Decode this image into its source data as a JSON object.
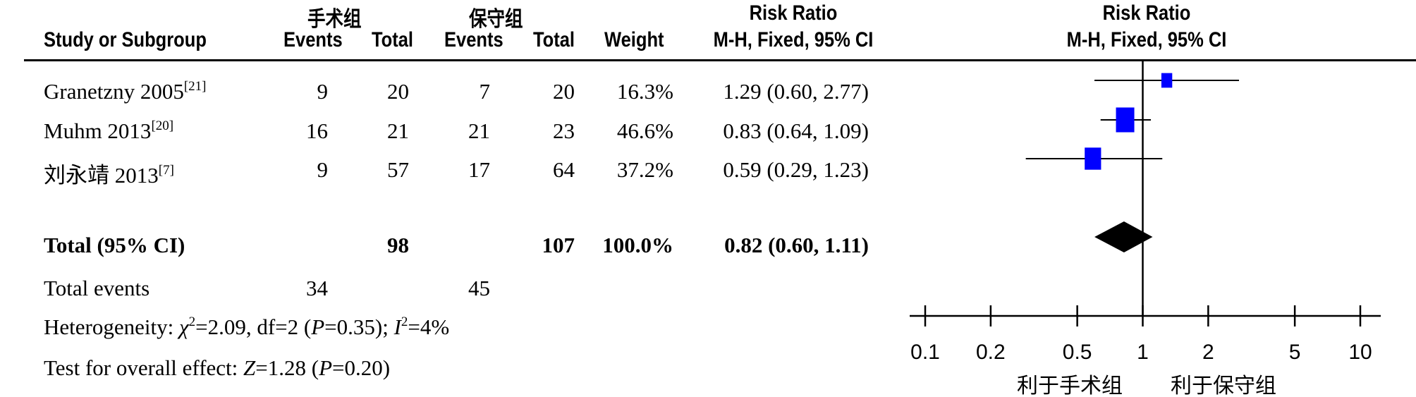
{
  "headers": {
    "group1": "手术组",
    "group2": "保守组",
    "study": "Study or Subgroup",
    "events": "Events",
    "total": "Total",
    "weight": "Weight",
    "rr_title": "Risk Ratio",
    "rr_method": "M-H, Fixed, 95% CI"
  },
  "studies": [
    {
      "name": "Granetzny 2005",
      "ref": "[21]",
      "e1": "9",
      "n1": "20",
      "e2": "7",
      "n2": "20",
      "weight": "16.3%",
      "ci_text": "1.29 (0.60, 2.77)"
    },
    {
      "name": "Muhm 2013",
      "ref": "[20]",
      "e1": "16",
      "n1": "21",
      "e2": "21",
      "n2": "23",
      "weight": "46.6%",
      "ci_text": "0.83 (0.64, 1.09)"
    },
    {
      "name": "刘永靖 2013",
      "ref": "[7]",
      "e1": "9",
      "n1": "57",
      "e2": "17",
      "n2": "64",
      "weight": "37.2%",
      "ci_text": "0.59 (0.29, 1.23)"
    }
  ],
  "total": {
    "label": "Total (95% CI)",
    "n1": "98",
    "n2": "107",
    "weight": "100.0%",
    "ci_text": "0.82 (0.60, 1.11)"
  },
  "total_events": {
    "label": "Total events",
    "e1": "34",
    "e2": "45"
  },
  "heterogeneity": {
    "prefix": "Heterogeneity: ",
    "chi": "χ",
    "chi_sup": "2",
    "chi_rest": "=2.09, df=2 (",
    "p": "P",
    "p_rest": "=0.35); ",
    "i": "I",
    "i_sup": "2",
    "i_rest": "=4%"
  },
  "overall": {
    "prefix": "Test for overall effect: ",
    "z": "Z",
    "z_rest": "=1.28 (",
    "p": "P",
    "p_rest": "=0.20)"
  },
  "chart_data": {
    "type": "forest",
    "title": "Risk Ratio",
    "subtitle": "M-H, Fixed, 95% CI",
    "x_scale": "log",
    "xlim": [
      0.1,
      10
    ],
    "ticks": [
      0.1,
      0.2,
      0.5,
      1,
      2,
      5,
      10
    ],
    "tick_labels": [
      "0.1",
      "0.2",
      "0.5",
      "1",
      "2",
      "5",
      "10"
    ],
    "reference_line": 1,
    "favors_left": "利于手术组",
    "favors_right": "利于保守组",
    "studies": [
      {
        "name": "Granetzny 2005",
        "rr": 1.29,
        "lower": 0.6,
        "upper": 2.77,
        "weight": 16.3
      },
      {
        "name": "Muhm 2013",
        "rr": 0.83,
        "lower": 0.64,
        "upper": 1.09,
        "weight": 46.6
      },
      {
        "name": "刘永靖 2013",
        "rr": 0.59,
        "lower": 0.29,
        "upper": 1.23,
        "weight": 37.2
      }
    ],
    "total": {
      "rr": 0.82,
      "lower": 0.6,
      "upper": 1.11
    },
    "colors": {
      "study_marker": "#0000ff",
      "total_marker": "#000000"
    }
  }
}
